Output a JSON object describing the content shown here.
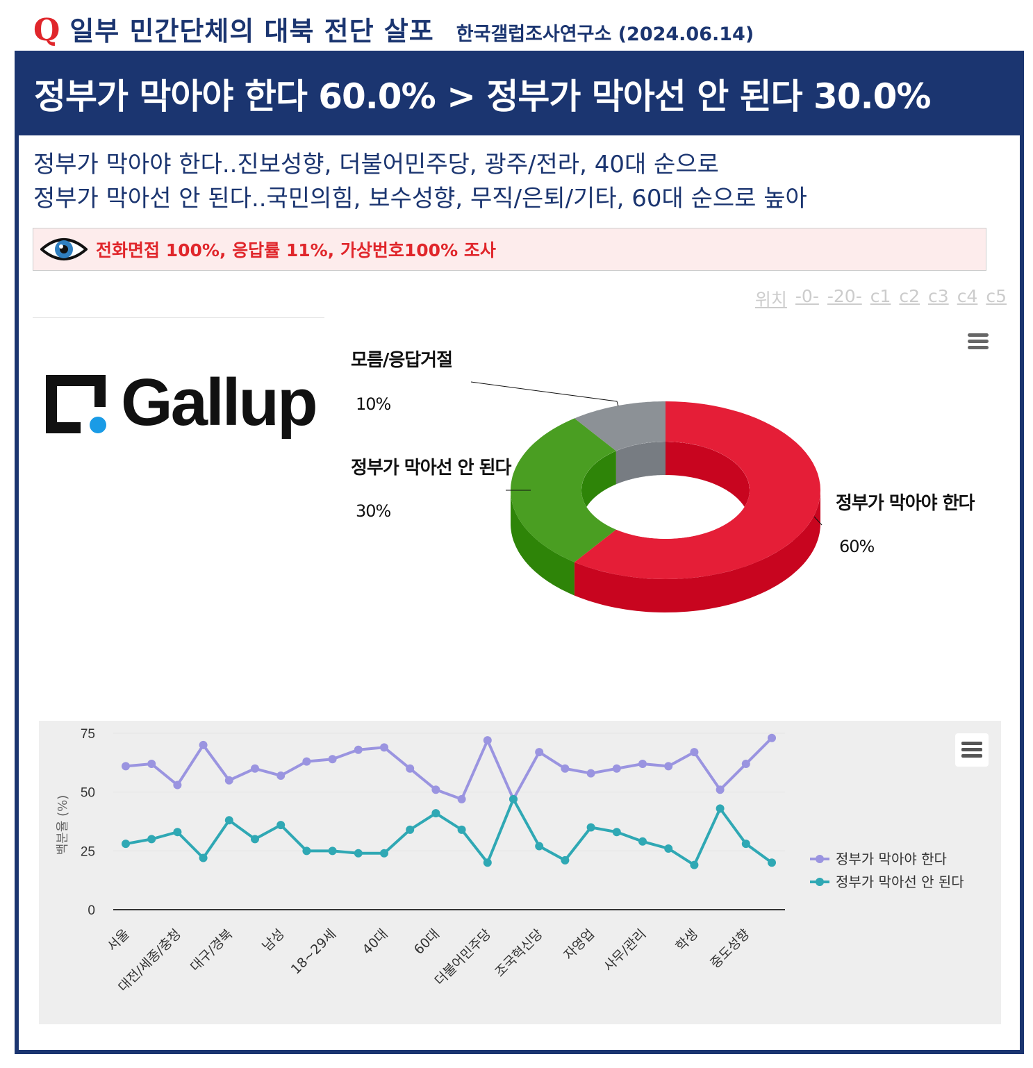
{
  "header": {
    "q_mark": "Q",
    "title": "일부 민간단체의 대북 전단 살포",
    "source": "한국갤럽조사연구소 (2024.06.14)"
  },
  "banner": "정부가 막아야 한다 60.0% > 정부가 막아선 안 된다 30.0%",
  "subtitle": [
    "정부가 막아야 한다..진보성향, 더불어민주당, 광주/전라, 40대 순으로",
    "정부가 막아선 안 된다..국민의힘, 보수성향, 무직/은퇴/기타, 60대 순으로 높아"
  ],
  "note": {
    "icon": "eye-icon",
    "text": "전화면접 100%, 응답률 11%, 가상번호100% 조사"
  },
  "links": [
    "위치",
    "-0-",
    "-20-",
    "c1",
    "c2",
    "c3",
    "c4",
    "c5"
  ],
  "logo": "Gallup",
  "colors": {
    "navy": "#1b3570",
    "red": "#e0262b",
    "yes": "#e51e37",
    "no": "#4a9e22",
    "unknown": "#8c9196",
    "line_yes": "#9a94e0",
    "line_no": "#2fa8b4"
  },
  "chart_data": [
    {
      "type": "pie",
      "style": "3d-donut",
      "labels": [
        "정부가 막아야 한다",
        "정부가 막아선 안 된다",
        "모름/응답거절"
      ],
      "values": [
        60,
        30,
        10
      ],
      "value_labels": [
        "60%",
        "30%",
        "10%"
      ]
    },
    {
      "type": "line",
      "ylabel": "백분율 (%)",
      "ylim": [
        0,
        75
      ],
      "yticks": [
        0,
        25,
        50,
        75
      ],
      "grid": true,
      "legend": "right",
      "categories": [
        "서울",
        "",
        "대전/세종/충청",
        "",
        "대구/경북",
        "",
        "남성",
        "",
        "18~29세",
        "",
        "40대",
        "",
        "60대",
        "",
        "더불어민주당",
        "",
        "조국혁신당",
        "",
        "자영업",
        "",
        "사무/관리",
        "",
        "학생",
        "",
        "중도성향",
        ""
      ],
      "series": [
        {
          "name": "정부가 막아야 한다",
          "values": [
            61,
            62,
            53,
            70,
            55,
            60,
            57,
            63,
            64,
            68,
            69,
            60,
            51,
            47,
            72,
            47,
            67,
            60,
            58,
            60,
            62,
            61,
            67,
            51,
            62,
            73
          ]
        },
        {
          "name": "정부가 막아선 안 된다",
          "values": [
            28,
            30,
            33,
            22,
            38,
            30,
            36,
            25,
            25,
            24,
            24,
            34,
            41,
            34,
            20,
            47,
            27,
            21,
            35,
            33,
            29,
            26,
            19,
            43,
            28,
            20
          ]
        }
      ]
    }
  ]
}
